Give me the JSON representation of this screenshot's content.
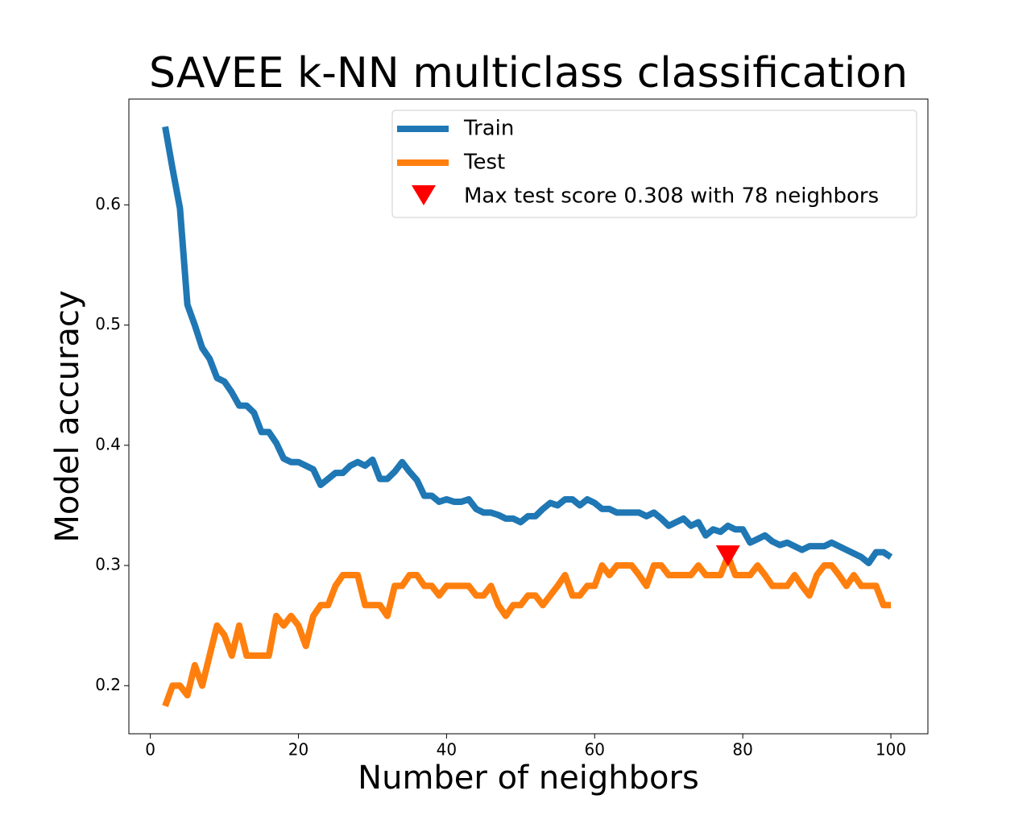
{
  "chart_data": {
    "type": "line",
    "title": "SAVEE k-NN multiclass classification",
    "xlabel": "Number of neighbors",
    "ylabel": "Model accuracy",
    "x": [
      2,
      3,
      4,
      5,
      6,
      7,
      8,
      9,
      10,
      11,
      12,
      13,
      14,
      15,
      16,
      17,
      18,
      19,
      20,
      21,
      22,
      23,
      24,
      25,
      26,
      27,
      28,
      29,
      30,
      31,
      32,
      33,
      34,
      35,
      36,
      37,
      38,
      39,
      40,
      41,
      42,
      43,
      44,
      45,
      46,
      47,
      48,
      49,
      50,
      51,
      52,
      53,
      54,
      55,
      56,
      57,
      58,
      59,
      60,
      61,
      62,
      63,
      64,
      65,
      66,
      67,
      68,
      69,
      70,
      71,
      72,
      73,
      74,
      75,
      76,
      77,
      78,
      79,
      80,
      81,
      82,
      83,
      84,
      85,
      86,
      87,
      88,
      89,
      90,
      91,
      92,
      93,
      94,
      95,
      96,
      97,
      98,
      99,
      100
    ],
    "series": [
      {
        "name": "Train",
        "color": "#1f77b4",
        "values": [
          0.665,
          0.63,
          0.597,
          0.517,
          0.5,
          0.481,
          0.472,
          0.456,
          0.453,
          0.444,
          0.433,
          0.433,
          0.427,
          0.411,
          0.411,
          0.402,
          0.389,
          0.386,
          0.386,
          0.383,
          0.38,
          0.367,
          0.372,
          0.377,
          0.377,
          0.383,
          0.386,
          0.383,
          0.388,
          0.372,
          0.372,
          0.378,
          0.386,
          0.378,
          0.371,
          0.358,
          0.358,
          0.353,
          0.355,
          0.353,
          0.353,
          0.355,
          0.347,
          0.344,
          0.344,
          0.342,
          0.339,
          0.339,
          0.336,
          0.341,
          0.341,
          0.347,
          0.352,
          0.35,
          0.355,
          0.355,
          0.35,
          0.355,
          0.352,
          0.347,
          0.347,
          0.344,
          0.344,
          0.344,
          0.344,
          0.341,
          0.344,
          0.339,
          0.333,
          0.336,
          0.339,
          0.333,
          0.336,
          0.325,
          0.33,
          0.328,
          0.333,
          0.33,
          0.33,
          0.319,
          0.322,
          0.325,
          0.32,
          0.317,
          0.319,
          0.316,
          0.313,
          0.316,
          0.316,
          0.316,
          0.319,
          0.316,
          0.313,
          0.31,
          0.307,
          0.302,
          0.311,
          0.311,
          0.307
        ]
      },
      {
        "name": "Test",
        "color": "#ff7f0e",
        "values": [
          0.183,
          0.2,
          0.2,
          0.192,
          0.217,
          0.2,
          0.225,
          0.25,
          0.242,
          0.225,
          0.25,
          0.225,
          0.225,
          0.225,
          0.225,
          0.258,
          0.25,
          0.258,
          0.25,
          0.233,
          0.258,
          0.267,
          0.267,
          0.283,
          0.292,
          0.292,
          0.292,
          0.267,
          0.267,
          0.267,
          0.258,
          0.283,
          0.283,
          0.292,
          0.292,
          0.283,
          0.283,
          0.275,
          0.283,
          0.283,
          0.283,
          0.283,
          0.275,
          0.275,
          0.283,
          0.267,
          0.258,
          0.267,
          0.267,
          0.275,
          0.275,
          0.267,
          0.275,
          0.283,
          0.292,
          0.275,
          0.275,
          0.283,
          0.283,
          0.3,
          0.292,
          0.3,
          0.3,
          0.3,
          0.292,
          0.283,
          0.3,
          0.3,
          0.292,
          0.292,
          0.292,
          0.292,
          0.3,
          0.292,
          0.292,
          0.292,
          0.308,
          0.292,
          0.292,
          0.292,
          0.3,
          0.292,
          0.283,
          0.283,
          0.283,
          0.292,
          0.283,
          0.275,
          0.292,
          0.3,
          0.3,
          0.292,
          0.283,
          0.292,
          0.283,
          0.283,
          0.283,
          0.267,
          0.267
        ]
      }
    ],
    "marker": {
      "name": "Max test score 0.308 with 78 neighbors",
      "color": "#ff0000",
      "x": 78,
      "y": 0.308
    },
    "xlim": [
      -2.9,
      105.0
    ],
    "ylim": [
      0.16,
      0.688
    ],
    "xticks": [
      0,
      20,
      40,
      60,
      80,
      100
    ],
    "yticks": [
      0.2,
      0.3,
      0.4,
      0.5,
      0.6
    ],
    "legend": "upper right"
  }
}
